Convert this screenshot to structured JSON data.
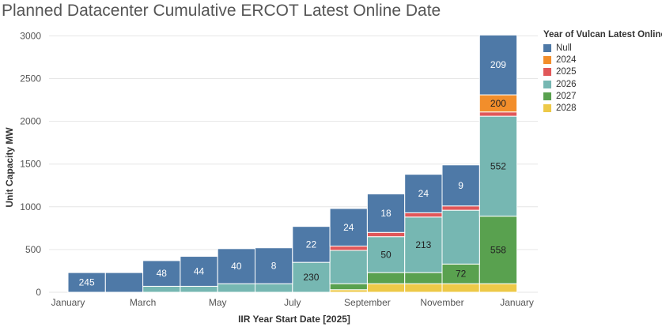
{
  "chart_data": {
    "type": "bar",
    "stacked": true,
    "title": "Planned Datacenter Cumulative ERCOT Latest Online Date",
    "xlabel": "IIR Year Start Date [2025]",
    "ylabel": "Unit Capacity MW",
    "ylim": [
      0,
      3050
    ],
    "yticks": [
      0,
      500,
      1000,
      1500,
      2000,
      2500,
      3000
    ],
    "xtick_labels": [
      "January",
      "March",
      "May",
      "July",
      "September",
      "November",
      "January"
    ],
    "grid": true,
    "legend": {
      "title": "Year of Vulcan Latest Online",
      "position": "right"
    },
    "categories": [
      "Jan",
      "Feb",
      "Mar",
      "Apr",
      "May",
      "Jun",
      "Jul",
      "Aug",
      "Sep",
      "Oct",
      "Nov",
      "Dec"
    ],
    "series": [
      {
        "name": "2028",
        "color": "#EDC948",
        "values": [
          0,
          0,
          0,
          0,
          0,
          0,
          0,
          30,
          100,
          100,
          100,
          100
        ]
      },
      {
        "name": "2027",
        "color": "#59A14F",
        "values": [
          0,
          0,
          0,
          0,
          0,
          0,
          0,
          70,
          130,
          130,
          230,
          790
        ]
      },
      {
        "name": "2026",
        "color": "#76B7B2",
        "values": [
          0,
          0,
          70,
          70,
          100,
          100,
          350,
          390,
          420,
          650,
          630,
          1170
        ]
      },
      {
        "name": "2025",
        "color": "#E15759",
        "values": [
          0,
          0,
          0,
          0,
          0,
          0,
          0,
          50,
          50,
          50,
          50,
          50
        ]
      },
      {
        "name": "2024",
        "color": "#F28E2B",
        "values": [
          0,
          0,
          0,
          0,
          0,
          0,
          0,
          0,
          0,
          0,
          0,
          200
        ]
      },
      {
        "name": "Null",
        "color": "#4E79A7",
        "values": [
          230,
          230,
          300,
          350,
          410,
          420,
          420,
          440,
          450,
          450,
          480,
          700
        ]
      }
    ],
    "data_labels": [
      {
        "category": "Jan",
        "series": "Null",
        "text": "245"
      },
      {
        "category": "Mar",
        "series": "Null",
        "text": "48"
      },
      {
        "category": "Apr",
        "series": "Null",
        "text": "44"
      },
      {
        "category": "May",
        "series": "Null",
        "text": "40"
      },
      {
        "category": "Jun",
        "series": "Null",
        "text": "8"
      },
      {
        "category": "Jul",
        "series": "Null",
        "text": "22"
      },
      {
        "category": "Jul",
        "series": "2026",
        "text": "230"
      },
      {
        "category": "Aug",
        "series": "Null",
        "text": "24"
      },
      {
        "category": "Sep",
        "series": "Null",
        "text": "18"
      },
      {
        "category": "Sep",
        "series": "2026",
        "text": "50"
      },
      {
        "category": "Oct",
        "series": "Null",
        "text": "24"
      },
      {
        "category": "Oct",
        "series": "2026",
        "text": "213"
      },
      {
        "category": "Nov",
        "series": "Null",
        "text": "9"
      },
      {
        "category": "Nov",
        "series": "2027",
        "text": "72"
      },
      {
        "category": "Dec",
        "series": "Null",
        "text": "209"
      },
      {
        "category": "Dec",
        "series": "2024",
        "text": "200"
      },
      {
        "category": "Dec",
        "series": "2026",
        "text": "552"
      },
      {
        "category": "Dec",
        "series": "2027",
        "text": "558"
      }
    ]
  }
}
